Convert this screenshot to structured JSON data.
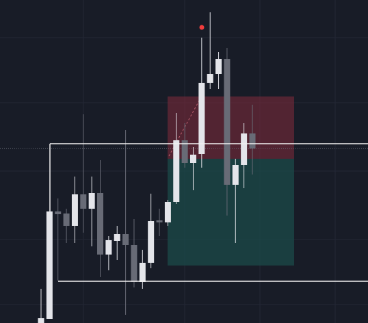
{
  "chart_data": {
    "type": "candlestick",
    "categories": [
      null,
      null,
      null,
      null,
      null,
      null,
      null,
      null,
      null,
      null,
      null,
      null,
      null,
      null,
      null,
      null,
      null,
      null,
      null,
      null,
      null,
      null,
      null,
      null,
      null,
      null
    ],
    "open": [
      0,
      6,
      163,
      160,
      142,
      188,
      167,
      190,
      100,
      120,
      130,
      114,
      60,
      88,
      150,
      147,
      177,
      267,
      234,
      247,
      351,
      364,
      386,
      202,
      231,
      277
    ],
    "high": [
      50,
      163,
      182,
      167,
      214,
      305,
      214,
      238,
      127,
      142,
      282,
      152,
      107,
      189,
      167,
      180,
      307,
      292,
      257,
      417,
      454,
      396,
      402,
      240,
      292,
      319
    ],
    "low": [
      0,
      6,
      62,
      117,
      117,
      132,
      112,
      67,
      77,
      92,
      12,
      52,
      50,
      80,
      127,
      142,
      174,
      227,
      194,
      227,
      342,
      342,
      157,
      117,
      197,
      217
    ],
    "close": [
      7,
      163,
      159,
      142,
      188,
      167,
      190,
      100,
      121,
      130,
      114,
      60,
      88,
      149,
      147,
      177,
      267,
      234,
      246,
      351,
      364,
      386,
      202,
      231,
      277,
      255
    ],
    "up_color": "#e4e5ea",
    "down_color": "#686b76",
    "ylim": [
      0,
      472
    ]
  }
}
